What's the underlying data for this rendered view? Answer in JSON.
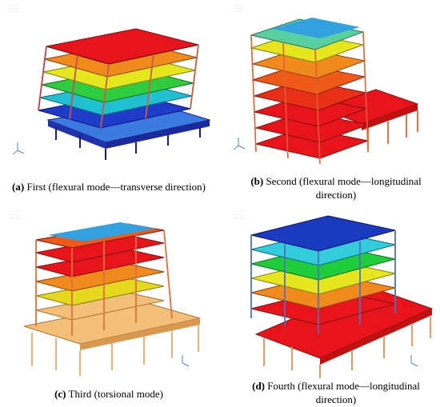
{
  "panels": [
    {
      "letter": "(a)",
      "caption": " First (flexural mode—transverse direction)"
    },
    {
      "letter": "(b)",
      "caption": " Second (flexural mode—longitudinal direction)"
    },
    {
      "letter": "(c)",
      "caption": " Third (torsional mode)"
    },
    {
      "letter": "(d)",
      "caption": " Fourth (flexural mode—longitudinal direction)"
    }
  ],
  "palette": {
    "red": "#e8141b",
    "orange": "#f08a1c",
    "yellow": "#e6e61e",
    "green": "#1ecc3c",
    "cyan": "#33ccdd",
    "blue": "#2a5ad8",
    "navy": "#1a1a9a",
    "tan": "#f2c07a",
    "beam": "#e0a060"
  }
}
